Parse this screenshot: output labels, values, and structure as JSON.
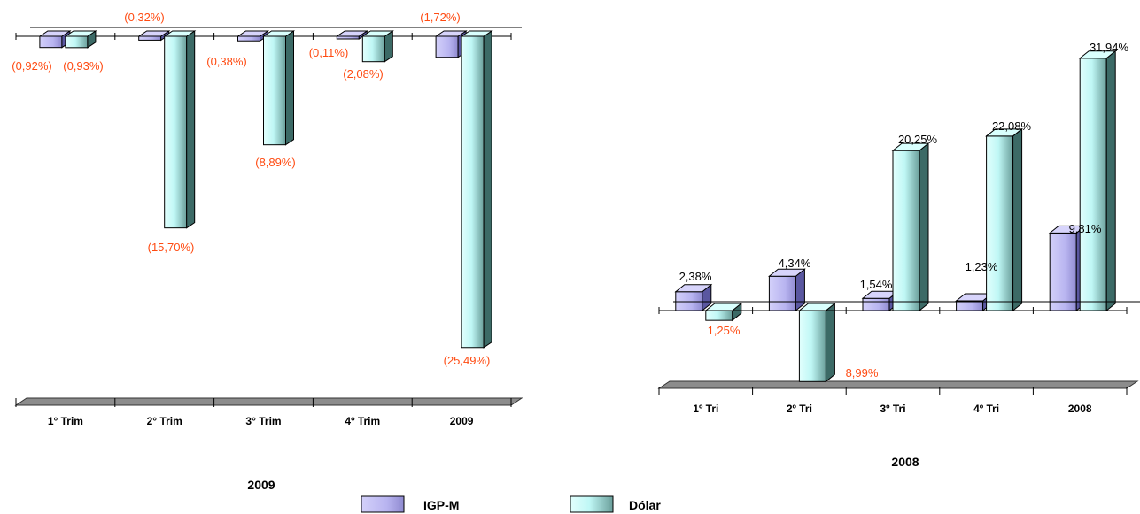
{
  "chart_data": [
    {
      "type": "bar",
      "title": "2009",
      "categories": [
        "1° Trim",
        "2° Trim",
        "3° Trim",
        "4º Trim",
        "2009"
      ],
      "series": [
        {
          "name": "IGP-M",
          "values": [
            -0.92,
            -0.32,
            -0.38,
            -0.11,
            -1.72
          ],
          "labels": [
            "(0,92%)",
            "(0,32%)",
            "(0,38%)",
            "(0,11%)",
            "(1,72%)"
          ]
        },
        {
          "name": "Dólar",
          "values": [
            -0.93,
            -15.7,
            -8.89,
            -2.08,
            -25.49
          ],
          "labels": [
            "(0,93%)",
            "(15,70%)",
            "(8,89%)",
            "(2,08%)",
            "(25,49%)"
          ]
        }
      ],
      "grid": false
    },
    {
      "type": "bar",
      "title": "2008",
      "categories": [
        "1º Tri",
        "2º Tri",
        "3º Tri",
        "4º Tri",
        "2008"
      ],
      "series": [
        {
          "name": "IGP-M",
          "values": [
            2.38,
            4.34,
            1.54,
            1.23,
            9.81
          ],
          "labels": [
            "2,38%",
            "4,34%",
            "1,54%",
            "1,23%",
            "9,81%"
          ]
        },
        {
          "name": "Dólar",
          "values": [
            -1.25,
            -8.99,
            20.25,
            22.08,
            31.94
          ],
          "labels": [
            "1,25%",
            "8,99%",
            "20,25%",
            "22,08%",
            "31,94%"
          ]
        }
      ],
      "grid": false
    }
  ],
  "legend": {
    "position": "bottom-center",
    "items": [
      {
        "label": "IGP-M",
        "color": "#b8b4f0"
      },
      {
        "label": "Dólar",
        "color": "#bff7f5"
      }
    ]
  },
  "colors": {
    "igpm_front": "#b8b4f0",
    "igpm_side": "#5a57a0",
    "dolar_front": "#bff7f5",
    "dolar_side": "#3c6a66",
    "negative_label": "#ff4b12",
    "positive_label": "#000000",
    "floor": "#8c8c8c"
  }
}
